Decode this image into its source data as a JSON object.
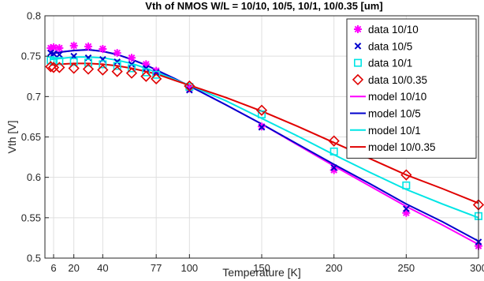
{
  "chart_data": {
    "type": "scatter",
    "title": "Vth of NMOS W/L = 10/10, 10/5, 10/1, 10/0.35 [um]",
    "xlabel": "Temperature [K]",
    "ylabel": "Vth [V]",
    "xlim": [
      0,
      300
    ],
    "ylim": [
      0.5,
      0.8
    ],
    "xticks": [
      6,
      20,
      40,
      77,
      100,
      150,
      200,
      250,
      300
    ],
    "xtick_labels": [
      "6",
      "20",
      "40",
      "77",
      "100",
      "150",
      "200",
      "250",
      "300"
    ],
    "yticks": [
      0.5,
      0.55,
      0.6,
      0.65,
      0.7,
      0.75,
      0.8
    ],
    "ytick_labels": [
      "0.5",
      "0.55",
      "0.6",
      "0.65",
      "0.7",
      "0.75",
      "0.8"
    ],
    "grid": true,
    "legend_position": "top-right",
    "series": [
      {
        "name": "data 10/10",
        "kind": "marker",
        "marker": "asterisk",
        "color": "#ff00ff",
        "x": [
          4,
          6,
          10,
          20,
          30,
          40,
          50,
          60,
          70,
          77,
          100,
          150,
          200,
          250,
          300
        ],
        "y": [
          0.76,
          0.761,
          0.76,
          0.763,
          0.762,
          0.759,
          0.754,
          0.748,
          0.74,
          0.732,
          0.71,
          0.663,
          0.609,
          0.556,
          0.515
        ]
      },
      {
        "name": "data 10/5",
        "kind": "marker",
        "marker": "x",
        "color": "#0000cd",
        "x": [
          4,
          6,
          10,
          20,
          30,
          40,
          50,
          60,
          70,
          77,
          100,
          150,
          200,
          250,
          300
        ],
        "y": [
          0.754,
          0.753,
          0.752,
          0.75,
          0.748,
          0.746,
          0.743,
          0.74,
          0.735,
          0.73,
          0.708,
          0.662,
          0.612,
          0.561,
          0.52
        ]
      },
      {
        "name": "data 10/1",
        "kind": "marker",
        "marker": "square",
        "color": "#00e5e5",
        "x": [
          4,
          6,
          10,
          20,
          30,
          40,
          50,
          60,
          70,
          77,
          100,
          150,
          200,
          250,
          300
        ],
        "y": [
          0.745,
          0.744,
          0.744,
          0.743,
          0.742,
          0.74,
          0.738,
          0.735,
          0.73,
          0.727,
          0.712,
          0.678,
          0.632,
          0.59,
          0.552
        ]
      },
      {
        "name": "data 10/0.35",
        "kind": "marker",
        "marker": "diamond",
        "color": "#e00000",
        "x": [
          4,
          6,
          10,
          20,
          30,
          40,
          50,
          60,
          70,
          77,
          100,
          150,
          200,
          250,
          300
        ],
        "y": [
          0.737,
          0.736,
          0.736,
          0.735,
          0.734,
          0.733,
          0.731,
          0.729,
          0.725,
          0.722,
          0.713,
          0.683,
          0.645,
          0.603,
          0.566
        ]
      },
      {
        "name": "model 10/10",
        "kind": "line",
        "color": "#ff00ff",
        "x": [
          4,
          10,
          20,
          30,
          40,
          50,
          60,
          70,
          77,
          90,
          100,
          125,
          150,
          175,
          200,
          225,
          250,
          275,
          300
        ],
        "y": [
          0.752,
          0.755,
          0.757,
          0.758,
          0.756,
          0.752,
          0.746,
          0.739,
          0.733,
          0.722,
          0.713,
          0.69,
          0.666,
          0.64,
          0.614,
          0.589,
          0.564,
          0.541,
          0.517
        ]
      },
      {
        "name": "model 10/5",
        "kind": "line",
        "color": "#0000cd",
        "x": [
          4,
          10,
          20,
          30,
          40,
          50,
          60,
          70,
          77,
          90,
          100,
          125,
          150,
          175,
          200,
          225,
          250,
          275,
          300
        ],
        "y": [
          0.753,
          0.755,
          0.757,
          0.758,
          0.756,
          0.752,
          0.746,
          0.739,
          0.733,
          0.722,
          0.713,
          0.69,
          0.666,
          0.641,
          0.616,
          0.592,
          0.567,
          0.545,
          0.521
        ]
      },
      {
        "name": "model 10/1",
        "kind": "line",
        "color": "#00e5e5",
        "x": [
          4,
          10,
          20,
          30,
          40,
          50,
          60,
          70,
          77,
          90,
          100,
          125,
          150,
          175,
          200,
          225,
          250,
          275,
          300
        ],
        "y": [
          0.746,
          0.747,
          0.749,
          0.749,
          0.748,
          0.745,
          0.741,
          0.735,
          0.73,
          0.721,
          0.714,
          0.695,
          0.673,
          0.651,
          0.628,
          0.606,
          0.585,
          0.567,
          0.55
        ]
      },
      {
        "name": "model 10/0.35",
        "kind": "line",
        "color": "#e00000",
        "x": [
          4,
          10,
          20,
          30,
          40,
          50,
          60,
          70,
          77,
          90,
          100,
          125,
          150,
          175,
          200,
          225,
          250,
          275,
          300
        ],
        "y": [
          0.739,
          0.74,
          0.741,
          0.741,
          0.74,
          0.738,
          0.735,
          0.731,
          0.728,
          0.72,
          0.714,
          0.699,
          0.682,
          0.663,
          0.643,
          0.623,
          0.603,
          0.586,
          0.568
        ]
      }
    ]
  }
}
